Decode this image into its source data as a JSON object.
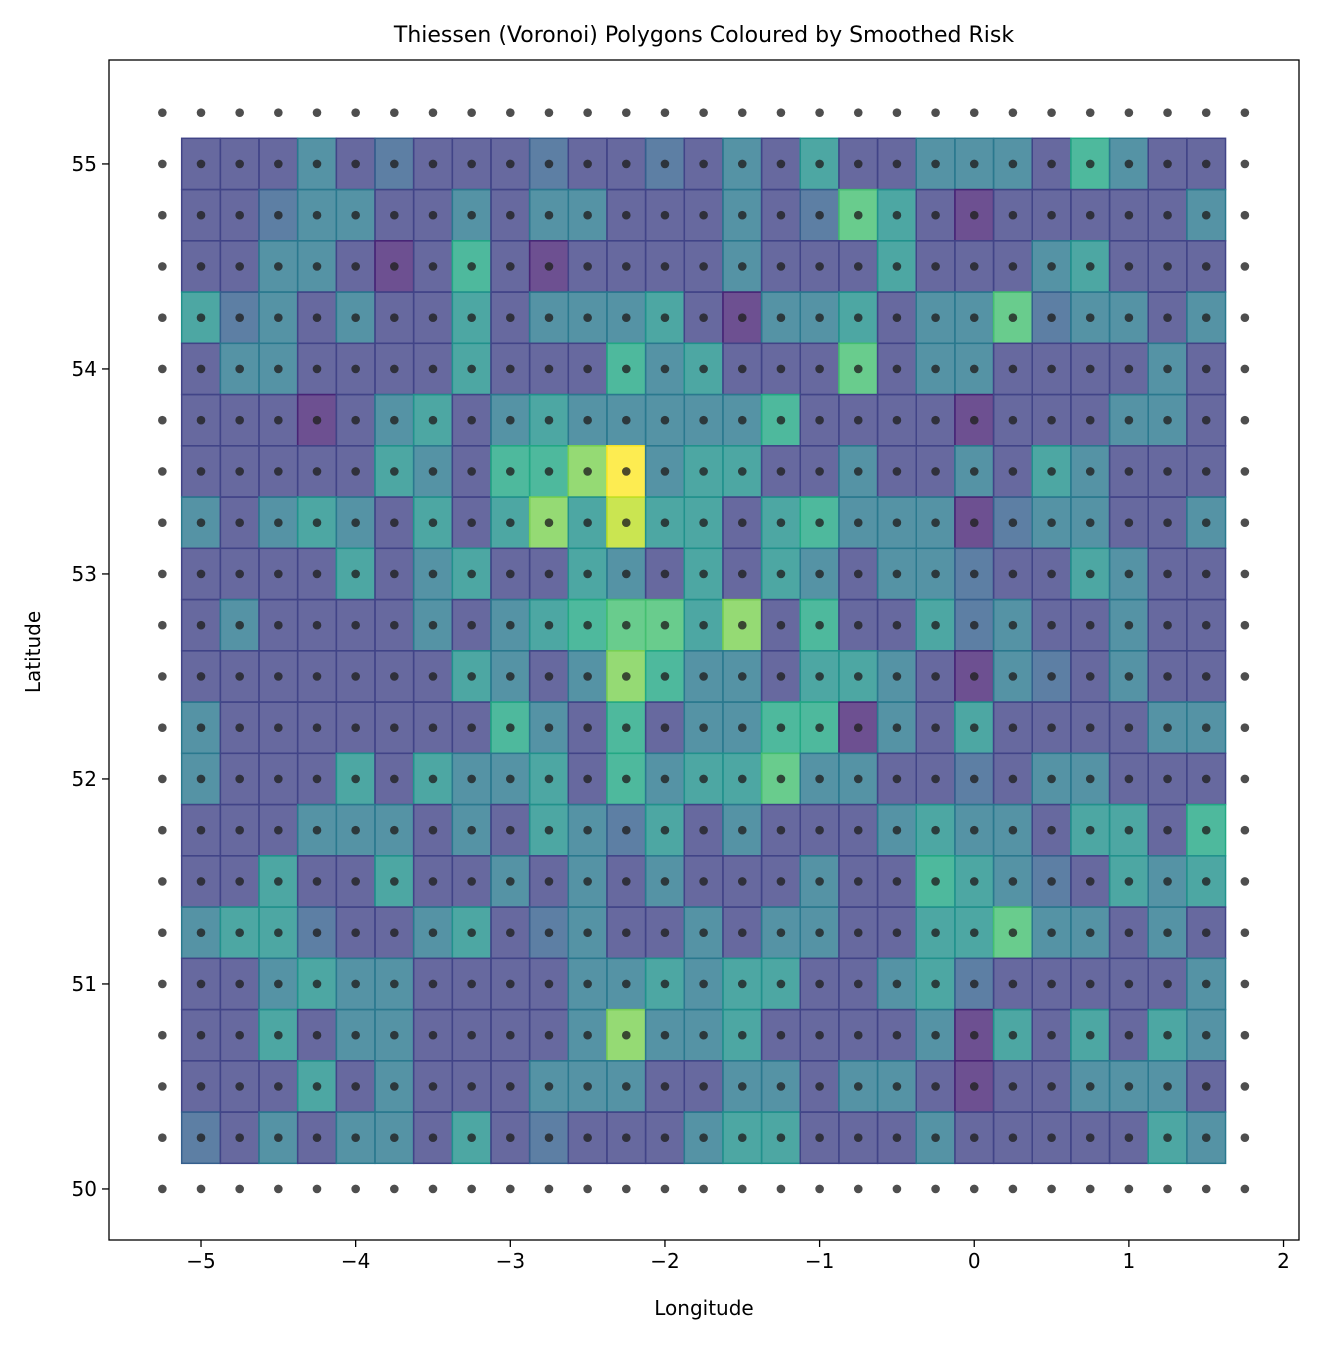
{
  "chart_data": {
    "type": "heatmap",
    "title": "Thiessen (Voronoi) Polygons Coloured by Smoothed Risk",
    "xlabel": "Longitude",
    "ylabel": "Latitude",
    "xlim": [
      -5.595,
      2.1
    ],
    "ylim": [
      49.751,
      55.507
    ],
    "xticks": [
      -5,
      -4,
      -3,
      -2,
      -1,
      0,
      1,
      2
    ],
    "xtick_labels": [
      "−5",
      "−4",
      "−3",
      "−2",
      "−1",
      "0",
      "1",
      "2"
    ],
    "yticks": [
      50,
      51,
      52,
      53,
      54,
      55
    ],
    "ytick_labels": [
      "50",
      "51",
      "52",
      "53",
      "54",
      "55"
    ],
    "colormap": "viridis",
    "zlim": [
      0,
      9
    ],
    "grid": false,
    "cell_lon_start": -5,
    "cell_lon_step": 0.25,
    "cell_lat_start": 55,
    "cell_lat_step": -0.25,
    "points_lon_range": [
      -5.25,
      1.75
    ],
    "points_lat_range": [
      50,
      55.25
    ],
    "point_step": 0.25,
    "point_color": "#222222",
    "risk_rows": [
      [
        1,
        1,
        1,
        3,
        1,
        2,
        1,
        1,
        1,
        2,
        1,
        1,
        2,
        1,
        3,
        1,
        4,
        1,
        1,
        3,
        3,
        3,
        1,
        5,
        3,
        1,
        1
      ],
      [
        1,
        1,
        2,
        3,
        3,
        1,
        1,
        3,
        1,
        3,
        3,
        1,
        1,
        1,
        3,
        1,
        2,
        6,
        4,
        1,
        0,
        1,
        1,
        1,
        1,
        1,
        3
      ],
      [
        1,
        1,
        3,
        3,
        1,
        0,
        1,
        5,
        1,
        0,
        1,
        1,
        1,
        1,
        3,
        1,
        1,
        1,
        4,
        1,
        1,
        1,
        3,
        4,
        1,
        1,
        1
      ],
      [
        4,
        2,
        3,
        1,
        3,
        1,
        1,
        4,
        1,
        3,
        3,
        3,
        4,
        1,
        0,
        3,
        3,
        4,
        1,
        3,
        3,
        6,
        2,
        3,
        3,
        1,
        3
      ],
      [
        1,
        3,
        3,
        1,
        1,
        1,
        1,
        4,
        1,
        1,
        1,
        5,
        3,
        4,
        1,
        1,
        1,
        6,
        1,
        3,
        3,
        1,
        1,
        1,
        1,
        3,
        1
      ],
      [
        1,
        1,
        1,
        0,
        1,
        3,
        4,
        1,
        3,
        4,
        3,
        3,
        3,
        3,
        3,
        5,
        1,
        1,
        1,
        1,
        0,
        1,
        1,
        1,
        3,
        3,
        1
      ],
      [
        1,
        1,
        1,
        1,
        1,
        4,
        3,
        1,
        5,
        5,
        7,
        9,
        3,
        4,
        4,
        1,
        1,
        3,
        1,
        1,
        3,
        1,
        4,
        3,
        1,
        1,
        1
      ],
      [
        3,
        1,
        3,
        4,
        3,
        1,
        4,
        1,
        4,
        7,
        4,
        8,
        4,
        4,
        1,
        4,
        5,
        3,
        3,
        3,
        0,
        2,
        3,
        3,
        1,
        1,
        3
      ],
      [
        1,
        1,
        1,
        1,
        4,
        1,
        3,
        4,
        1,
        1,
        4,
        3,
        1,
        4,
        1,
        4,
        3,
        1,
        3,
        3,
        2,
        1,
        1,
        4,
        3,
        1,
        1
      ],
      [
        1,
        3,
        1,
        1,
        1,
        1,
        3,
        1,
        3,
        4,
        5,
        6,
        6,
        4,
        7,
        1,
        5,
        1,
        1,
        4,
        2,
        3,
        1,
        1,
        3,
        1,
        1
      ],
      [
        1,
        1,
        1,
        1,
        1,
        1,
        1,
        4,
        3,
        1,
        3,
        7,
        5,
        3,
        3,
        1,
        4,
        4,
        3,
        1,
        0,
        3,
        2,
        1,
        3,
        1,
        1
      ],
      [
        3,
        1,
        1,
        1,
        1,
        1,
        1,
        1,
        5,
        3,
        1,
        5,
        1,
        3,
        3,
        5,
        5,
        0,
        3,
        1,
        4,
        1,
        1,
        1,
        1,
        3,
        3
      ],
      [
        3,
        1,
        1,
        1,
        4,
        1,
        4,
        3,
        3,
        4,
        1,
        5,
        3,
        4,
        4,
        6,
        3,
        3,
        1,
        1,
        2,
        1,
        3,
        3,
        1,
        1,
        1
      ],
      [
        1,
        1,
        1,
        3,
        3,
        3,
        1,
        3,
        1,
        4,
        3,
        2,
        4,
        1,
        3,
        1,
        1,
        1,
        3,
        4,
        3,
        3,
        1,
        4,
        4,
        1,
        5
      ],
      [
        1,
        1,
        4,
        1,
        1,
        4,
        1,
        1,
        3,
        1,
        3,
        1,
        3,
        1,
        1,
        1,
        3,
        1,
        1,
        5,
        4,
        3,
        2,
        1,
        4,
        3,
        4
      ],
      [
        3,
        4,
        4,
        2,
        1,
        1,
        3,
        4,
        1,
        2,
        3,
        1,
        1,
        3,
        1,
        3,
        3,
        1,
        1,
        4,
        4,
        6,
        3,
        3,
        1,
        3,
        1
      ],
      [
        1,
        1,
        3,
        4,
        3,
        3,
        1,
        1,
        1,
        1,
        3,
        3,
        4,
        3,
        4,
        4,
        1,
        1,
        3,
        4,
        2,
        1,
        1,
        1,
        1,
        1,
        3
      ],
      [
        1,
        1,
        4,
        1,
        3,
        3,
        1,
        1,
        1,
        1,
        3,
        7,
        3,
        3,
        4,
        1,
        1,
        1,
        1,
        3,
        0,
        4,
        1,
        4,
        1,
        4,
        3
      ],
      [
        1,
        1,
        1,
        4,
        1,
        3,
        1,
        1,
        1,
        3,
        3,
        3,
        1,
        1,
        3,
        3,
        1,
        3,
        3,
        1,
        0,
        1,
        1,
        3,
        3,
        3,
        1
      ],
      [
        2,
        1,
        3,
        1,
        3,
        3,
        1,
        4,
        1,
        2,
        1,
        1,
        1,
        3,
        4,
        4,
        1,
        1,
        1,
        3,
        1,
        1,
        1,
        1,
        1,
        4,
        3
      ]
    ]
  }
}
